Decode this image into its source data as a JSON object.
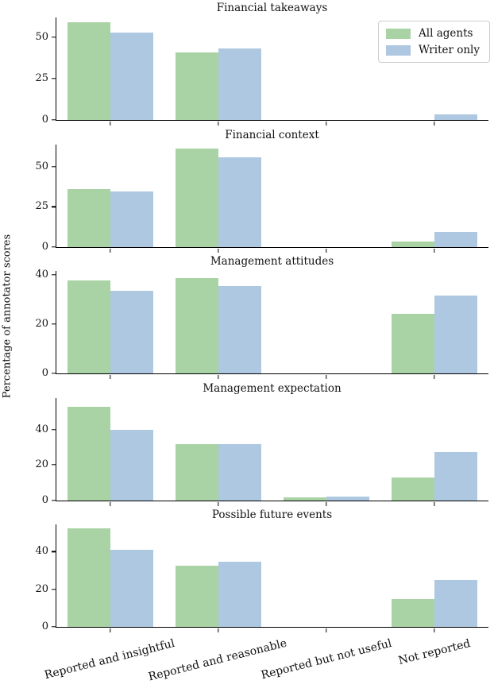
{
  "figure": {
    "ylabel": "Percentage of annotator scores",
    "legend": {
      "position": "upper right",
      "items": [
        {
          "label": "All agents",
          "color": "#a9d3a4"
        },
        {
          "label": "Writer only",
          "color": "#aec8e1"
        }
      ]
    },
    "axis_color": "#000000",
    "background_color": "#ffffff"
  },
  "chart_data": [
    {
      "type": "bar",
      "title": "Financial takeaways",
      "categories": [
        "Reported and insightful",
        "Reported and reasonable",
        "Reported but not useful",
        "Not reported"
      ],
      "series": [
        {
          "name": "All agents",
          "values": [
            59,
            41,
            0,
            0
          ]
        },
        {
          "name": "Writer only",
          "values": [
            53,
            43.5,
            0,
            3.5
          ]
        }
      ],
      "yticks": [
        0,
        25,
        50
      ],
      "ylim": [
        0,
        62
      ],
      "legend": [
        "All agents",
        "Writer only"
      ],
      "grid": false
    },
    {
      "type": "bar",
      "title": "Financial context",
      "categories": [
        "Reported and insightful",
        "Reported and reasonable",
        "Reported but not useful",
        "Not reported"
      ],
      "series": [
        {
          "name": "All agents",
          "values": [
            36,
            61.5,
            0,
            3
          ]
        },
        {
          "name": "Writer only",
          "values": [
            34.5,
            56,
            0,
            9
          ]
        }
      ],
      "yticks": [
        0,
        25,
        50
      ],
      "ylim": [
        0,
        64
      ],
      "grid": false
    },
    {
      "type": "bar",
      "title": "Management attitudes",
      "categories": [
        "Reported and insightful",
        "Reported and reasonable",
        "Reported but not useful",
        "Not reported"
      ],
      "series": [
        {
          "name": "All agents",
          "values": [
            37.5,
            38.5,
            0,
            24
          ]
        },
        {
          "name": "Writer only",
          "values": [
            33.5,
            35.5,
            0,
            31.5
          ]
        }
      ],
      "yticks": [
        0,
        20,
        40
      ],
      "ylim": [
        0,
        41.5
      ],
      "grid": false
    },
    {
      "type": "bar",
      "title": "Management expectation",
      "categories": [
        "Reported and insightful",
        "Reported and reasonable",
        "Reported but not useful",
        "Not reported"
      ],
      "series": [
        {
          "name": "All agents",
          "values": [
            53,
            31.5,
            1.5,
            13
          ]
        },
        {
          "name": "Writer only",
          "values": [
            40,
            31.5,
            2.2,
            27
          ]
        }
      ],
      "yticks": [
        0,
        20,
        40
      ],
      "ylim": [
        0,
        58
      ],
      "grid": false
    },
    {
      "type": "bar",
      "title": "Possible future events",
      "categories": [
        "Reported and insightful",
        "Reported and reasonable",
        "Reported but not useful",
        "Not reported"
      ],
      "series": [
        {
          "name": "All agents",
          "values": [
            52.5,
            32.5,
            0,
            15
          ]
        },
        {
          "name": "Writer only",
          "values": [
            41,
            34.5,
            0,
            25
          ]
        }
      ],
      "yticks": [
        0,
        20,
        40
      ],
      "ylim": [
        0,
        54.5
      ],
      "grid": false
    }
  ]
}
